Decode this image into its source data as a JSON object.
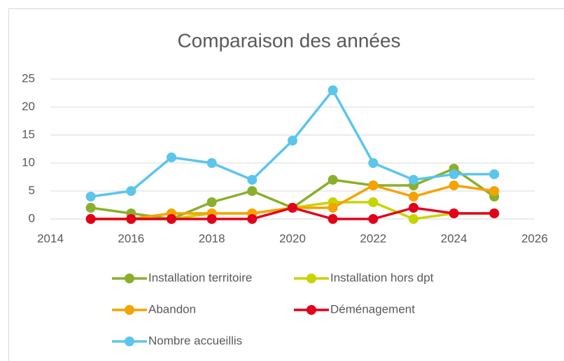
{
  "chart_data": {
    "type": "line",
    "title": "Comparaison des années",
    "x": [
      2015,
      2016,
      2017,
      2018,
      2019,
      2020,
      2021,
      2022,
      2023,
      2024,
      2025
    ],
    "series": [
      {
        "name": "Installation territoire",
        "color": "#8aaf2b",
        "values": [
          2,
          1,
          0,
          3,
          5,
          2,
          7,
          6,
          6,
          9,
          4
        ]
      },
      {
        "name": "Installation hors dpt",
        "color": "#c8d400",
        "values": [
          0,
          0,
          0,
          1,
          1,
          2,
          3,
          3,
          0,
          1,
          1
        ]
      },
      {
        "name": "Abandon",
        "color": "#f4a300",
        "values": [
          0,
          0,
          1,
          1,
          1,
          2,
          2,
          6,
          4,
          6,
          5
        ]
      },
      {
        "name": "Déménagement",
        "color": "#e2001a",
        "values": [
          0,
          0,
          0,
          0,
          0,
          2,
          0,
          0,
          2,
          1,
          1
        ]
      },
      {
        "name": "Nombre accueillis",
        "color": "#5bc5ec",
        "values": [
          4,
          5,
          11,
          10,
          7,
          14,
          23,
          10,
          7,
          8,
          8
        ]
      }
    ],
    "xlim": [
      2014,
      2026
    ],
    "xticks": [
      2014,
      2016,
      2018,
      2020,
      2022,
      2024,
      2026
    ],
    "ylim": [
      0,
      25
    ],
    "yticks": [
      0,
      5,
      10,
      15,
      20,
      25
    ],
    "grid": true,
    "legend": "bottom"
  }
}
